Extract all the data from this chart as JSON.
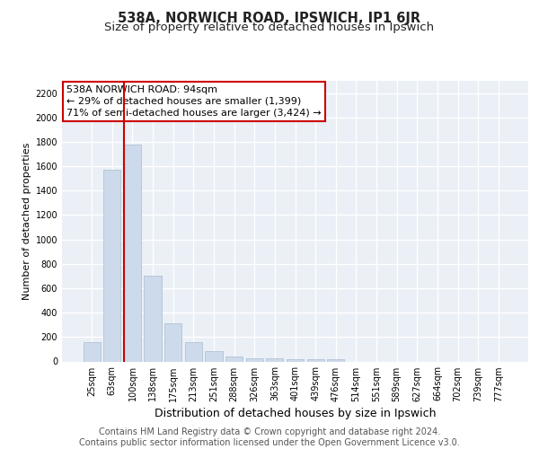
{
  "title_line1": "538A, NORWICH ROAD, IPSWICH, IP1 6JR",
  "title_line2": "Size of property relative to detached houses in Ipswich",
  "xlabel": "Distribution of detached houses by size in Ipswich",
  "ylabel": "Number of detached properties",
  "footer_line1": "Contains HM Land Registry data © Crown copyright and database right 2024.",
  "footer_line2": "Contains public sector information licensed under the Open Government Licence v3.0.",
  "categories": [
    "25sqm",
    "63sqm",
    "100sqm",
    "138sqm",
    "175sqm",
    "213sqm",
    "251sqm",
    "288sqm",
    "326sqm",
    "363sqm",
    "401sqm",
    "439sqm",
    "476sqm",
    "514sqm",
    "551sqm",
    "589sqm",
    "627sqm",
    "664sqm",
    "702sqm",
    "739sqm",
    "777sqm"
  ],
  "values": [
    160,
    1575,
    1775,
    700,
    315,
    160,
    85,
    40,
    25,
    25,
    20,
    20,
    20,
    0,
    0,
    0,
    0,
    0,
    0,
    0,
    0
  ],
  "bar_color": "#ccdaeb",
  "bar_edge_color": "#aabcce",
  "red_line_index": 2,
  "red_line_color": "#cc0000",
  "annotation_line1": "538A NORWICH ROAD: 94sqm",
  "annotation_line2": "← 29% of detached houses are smaller (1,399)",
  "annotation_line3": "71% of semi-detached houses are larger (3,424) →",
  "annotation_box_color": "#ffffff",
  "annotation_box_edge": "#cc0000",
  "ylim": [
    0,
    2300
  ],
  "yticks": [
    0,
    200,
    400,
    600,
    800,
    1000,
    1200,
    1400,
    1600,
    1800,
    2000,
    2200
  ],
  "bg_color": "#eaf0f6",
  "grid_color": "#ffffff",
  "title_fontsize": 10.5,
  "subtitle_fontsize": 9.5,
  "ylabel_fontsize": 8,
  "xlabel_fontsize": 9,
  "tick_fontsize": 7,
  "annotation_fontsize": 8,
  "footer_fontsize": 7
}
